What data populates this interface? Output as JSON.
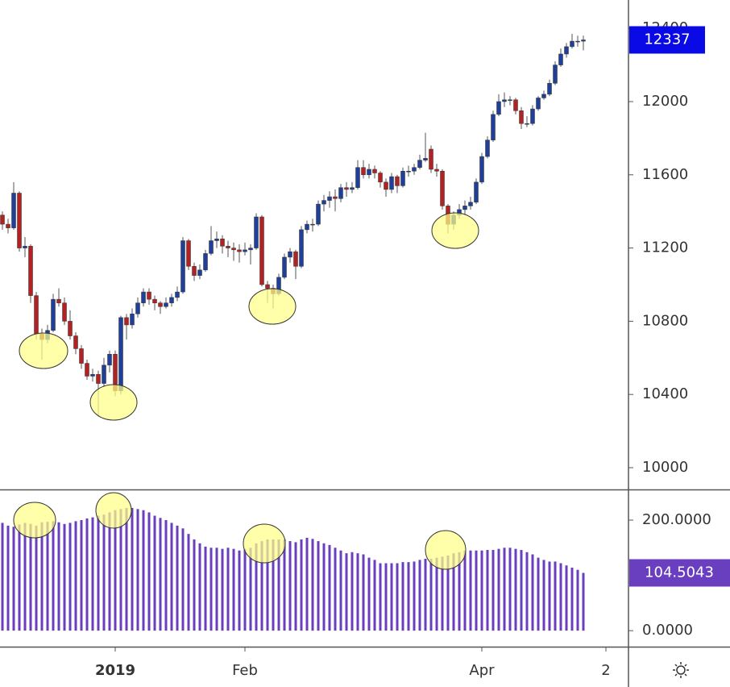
{
  "chart_data": [
    {
      "type": "candlestick",
      "up_color": "#1f3f99",
      "down_color": "#b22222",
      "xlim": [
        -0.43,
        111
      ],
      "xticks": [
        {
          "value": 20,
          "label": "2019"
        },
        {
          "value": 43,
          "label": "Feb"
        },
        {
          "value": 85,
          "label": "Apr"
        },
        {
          "value": 107,
          "label": "2"
        }
      ],
      "ylim": [
        9881,
        12555
      ],
      "yticks": [
        10000,
        10400,
        10800,
        11200,
        11600,
        12000,
        12400
      ],
      "open": [
        11380,
        11330,
        11310,
        11500,
        11200,
        11210,
        10940,
        10730,
        10700,
        10750,
        10920,
        10900,
        10800,
        10720,
        10650,
        10570,
        10500,
        10510,
        10460,
        10560,
        10620,
        10420,
        10820,
        10780,
        10840,
        10900,
        10960,
        10920,
        10900,
        10880,
        10900,
        10930,
        10960,
        11240,
        11100,
        11050,
        11080,
        11170,
        11240,
        11250,
        11210,
        11200,
        11190,
        11180,
        11190,
        11200,
        11370,
        11000,
        10980,
        10950,
        11040,
        11150,
        11180,
        11100,
        11300,
        11330,
        11330,
        11440,
        11460,
        11480,
        11470,
        11530,
        11520,
        11530,
        11640,
        11600,
        11630,
        11610,
        11560,
        11520,
        11590,
        11540,
        11620,
        11620,
        11640,
        11680,
        11740,
        11630,
        11620,
        11430,
        11330,
        11380,
        11410,
        11430,
        11450,
        11560,
        11700,
        11790,
        11930,
        12000,
        12010,
        12010,
        11950,
        11880,
        11880,
        11960,
        12020,
        12040,
        12100,
        12200,
        12260,
        12300,
        12330,
        12330
      ],
      "high": [
        11400,
        11360,
        11560,
        11510,
        11260,
        11220,
        10960,
        10760,
        10780,
        10950,
        10980,
        10930,
        10860,
        10740,
        10670,
        10590,
        10540,
        10530,
        10600,
        10640,
        10640,
        10830,
        10840,
        10870,
        10930,
        10980,
        10980,
        10940,
        10910,
        10930,
        10950,
        10990,
        11260,
        11250,
        11120,
        11110,
        11190,
        11320,
        11290,
        11270,
        11240,
        11230,
        11220,
        11230,
        11220,
        11390,
        11380,
        11020,
        11000,
        11060,
        11170,
        11200,
        11190,
        11320,
        11350,
        11360,
        11460,
        11490,
        11510,
        11520,
        11550,
        11560,
        11560,
        11680,
        11680,
        11660,
        11650,
        11620,
        11580,
        11610,
        11600,
        11640,
        11650,
        11660,
        11710,
        11830,
        11760,
        11660,
        11630,
        11440,
        11400,
        11440,
        11460,
        11480,
        11580,
        11720,
        11810,
        11950,
        12040,
        12050,
        12030,
        12020,
        11970,
        11920,
        11980,
        12030,
        12060,
        12120,
        12220,
        12290,
        12320,
        12370,
        12360,
        12360
      ],
      "low": [
        11300,
        11280,
        11300,
        11180,
        11150,
        10900,
        10700,
        10590,
        10680,
        10740,
        10880,
        10780,
        10700,
        10620,
        10540,
        10480,
        10470,
        10280,
        10440,
        10520,
        10390,
        10400,
        10700,
        10760,
        10820,
        10880,
        10890,
        10860,
        10840,
        10870,
        10880,
        10910,
        10950,
        11080,
        11020,
        11030,
        11070,
        11160,
        11200,
        11170,
        11150,
        11130,
        11120,
        11160,
        11110,
        11190,
        10990,
        10900,
        10870,
        10940,
        11030,
        11120,
        11030,
        11090,
        11280,
        11290,
        11320,
        11400,
        11420,
        11400,
        11450,
        11480,
        11500,
        11520,
        11580,
        11580,
        11580,
        11530,
        11480,
        11500,
        11500,
        11530,
        11590,
        11600,
        11630,
        11670,
        11610,
        11590,
        11410,
        11280,
        11300,
        11360,
        11380,
        11410,
        11440,
        11550,
        11690,
        11780,
        11920,
        11970,
        11980,
        11930,
        11850,
        11860,
        11870,
        11950,
        12010,
        12030,
        12090,
        12190,
        12240,
        12290,
        12300,
        12280
      ],
      "close": [
        11330,
        11310,
        11500,
        11200,
        11210,
        10940,
        10730,
        10700,
        10750,
        10920,
        10900,
        10800,
        10720,
        10650,
        10570,
        10500,
        10510,
        10460,
        10560,
        10620,
        10420,
        10820,
        10780,
        10840,
        10900,
        10960,
        10920,
        10900,
        10880,
        10900,
        10930,
        10960,
        11240,
        11100,
        11050,
        11080,
        11170,
        11240,
        11250,
        11210,
        11200,
        11190,
        11180,
        11190,
        11200,
        11370,
        11000,
        10980,
        10950,
        11040,
        11150,
        11180,
        11100,
        11300,
        11330,
        11330,
        11440,
        11460,
        11480,
        11470,
        11530,
        11520,
        11530,
        11640,
        11600,
        11630,
        11610,
        11560,
        11520,
        11590,
        11540,
        11620,
        11620,
        11640,
        11680,
        11690,
        11630,
        11620,
        11430,
        11330,
        11380,
        11410,
        11430,
        11450,
        11560,
        11700,
        11790,
        11930,
        12000,
        12010,
        12010,
        11950,
        11880,
        11880,
        11960,
        12020,
        12040,
        12100,
        12200,
        12260,
        12300,
        12330,
        12330,
        12337
      ],
      "last_color": "#0a0ae6"
    },
    {
      "type": "bar",
      "color": "#6a3fbf",
      "ylim": [
        -29,
        254
      ],
      "yticks": [
        {
          "value": 0,
          "label": "0.0000"
        },
        {
          "value": 200,
          "label": "200.0000"
        }
      ],
      "values": [
        195,
        190,
        188,
        192,
        195,
        193,
        190,
        196,
        197,
        198,
        196,
        193,
        195,
        198,
        200,
        203,
        205,
        208,
        210,
        214,
        218,
        220,
        222,
        222,
        220,
        218,
        214,
        208,
        204,
        200,
        195,
        190,
        185,
        175,
        165,
        158,
        152,
        150,
        150,
        148,
        150,
        148,
        145,
        148,
        150,
        158,
        162,
        165,
        165,
        165,
        165,
        162,
        160,
        165,
        168,
        166,
        162,
        158,
        155,
        150,
        145,
        140,
        142,
        140,
        138,
        132,
        128,
        122,
        122,
        122,
        122,
        124,
        124,
        125,
        128,
        130,
        130,
        132,
        134,
        136,
        140,
        142,
        145,
        145,
        145,
        145,
        146,
        146,
        148,
        150,
        150,
        148,
        146,
        142,
        138,
        132,
        128,
        125,
        125,
        122,
        118,
        114,
        110,
        104.5043
      ]
    }
  ]
}
